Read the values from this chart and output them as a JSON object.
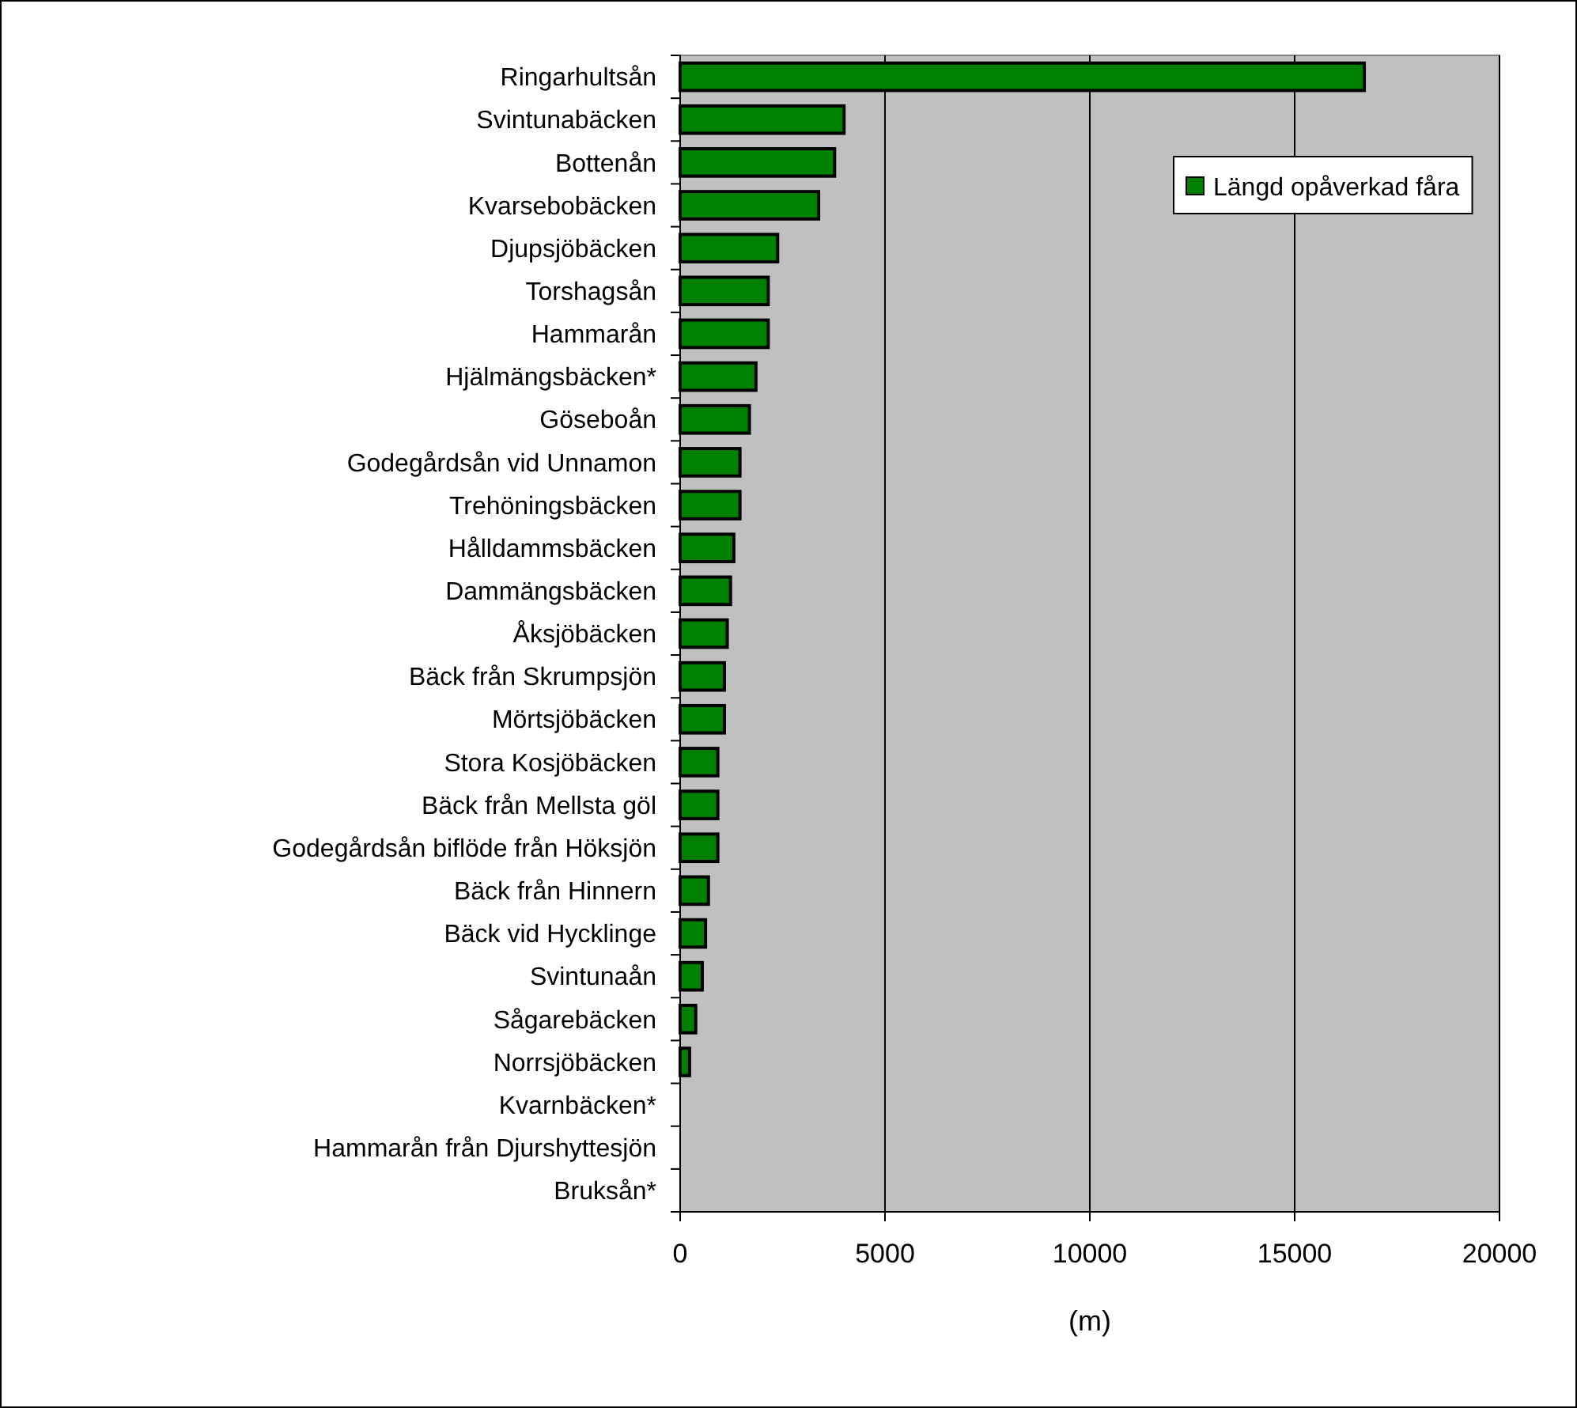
{
  "chart_data": {
    "type": "bar",
    "orientation": "horizontal",
    "xlabel": "(m)",
    "categories": [
      "Ringarhultsån",
      "Svintunabäcken",
      "Bottenån",
      "Kvarsebobäcken",
      "Djupsjöbäcken",
      "Torshagsån",
      "Hammarån",
      "Hjälmängsbäcken*",
      "Göseboån",
      "Godegårdsån vid Unnamon ",
      "Trehöningsbäcken",
      "Hålldammsbäcken",
      "Dammängsbäcken",
      "Åksjöbäcken",
      "Bäck från Skrumpsjön",
      "Mörtsjöbäcken",
      "Stora Kosjöbäcken",
      "Bäck från Mellsta göl",
      "Godegårdsån biflöde från Höksjön",
      "Bäck från Hinnern",
      "Bäck vid Hycklinge",
      "Svintunaån",
      "Sågarebäcken",
      "Norrsjöbäcken",
      "Kvarnbäcken*",
      "Hammarån från Djurshyttesjön",
      "Bruksån*"
    ],
    "series": [
      {
        "name": "Längd opåverkad fåra",
        "color": "#008000",
        "values": [
          16700,
          4000,
          3770,
          3380,
          2380,
          2150,
          2150,
          1850,
          1690,
          1460,
          1460,
          1310,
          1230,
          1150,
          1080,
          1080,
          920,
          920,
          920,
          690,
          620,
          540,
          380,
          230,
          0,
          0,
          0
        ]
      }
    ],
    "xlim": [
      0,
      20000
    ],
    "xticks": [
      0,
      5000,
      10000,
      15000,
      20000
    ],
    "grid": "x",
    "legend": "top right"
  }
}
